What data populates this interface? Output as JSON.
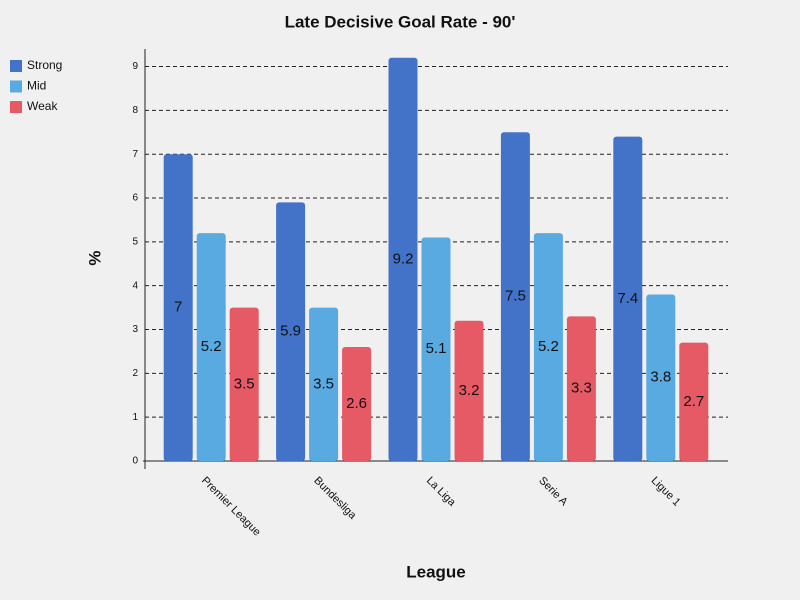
{
  "chart_data": {
    "type": "bar",
    "title": "Late Decisive Goal Rate - 90'",
    "x_label": "League",
    "y_label": "%",
    "categories": [
      "Premier League",
      "Bundesliga",
      "La Liga",
      "Serie A",
      "Ligue 1"
    ],
    "series": [
      {
        "name": "Strong",
        "color": "#4373c8",
        "values": [
          7,
          5.9,
          9.2,
          7.5,
          7.4
        ]
      },
      {
        "name": "Mid",
        "color": "#5aaae2",
        "values": [
          5.2,
          3.5,
          5.1,
          5.2,
          3.8
        ]
      },
      {
        "name": "Weak",
        "color": "#e65a66",
        "values": [
          3.5,
          2.6,
          3.2,
          3.3,
          2.7
        ]
      }
    ],
    "ylim": [
      0,
      9.4
    ],
    "yticks": [
      0,
      1,
      2,
      3,
      4,
      5,
      6,
      7,
      8,
      9
    ],
    "grid": true,
    "legend": "top-left"
  }
}
